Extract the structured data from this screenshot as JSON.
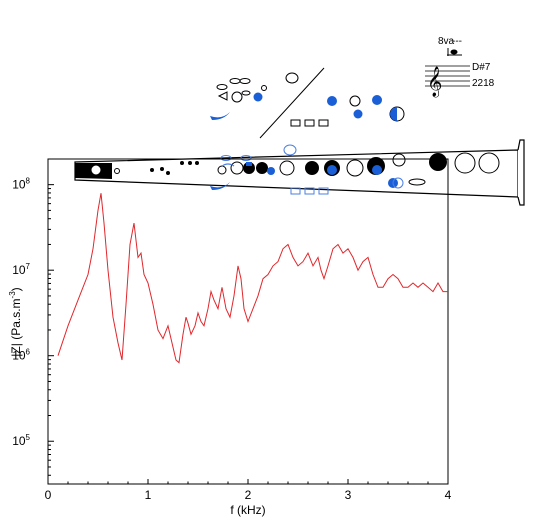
{
  "chart_data": {
    "type": "line",
    "title": "",
    "xlabel": "f (kHz)",
    "ylabel": "|Z| (Pa.s.m",
    "ylabel_sup": "-3",
    "ylabel_end": ")",
    "xlim": [
      0,
      4
    ],
    "ylim_log10": [
      4.5,
      8.3
    ],
    "yscale": "log",
    "grid": false,
    "x_ticks": [
      0,
      1,
      2,
      3,
      4
    ],
    "x_tick_labels": [
      "0",
      "1",
      "2",
      "3",
      "4"
    ],
    "y_ticks_exp": [
      5,
      6,
      7,
      8
    ],
    "y_tick_labels": [
      {
        "base": "10",
        "exp": "5"
      },
      {
        "base": "10",
        "exp": "6"
      },
      {
        "base": "10",
        "exp": "7"
      },
      {
        "base": "10",
        "exp": "8"
      }
    ],
    "series": [
      {
        "color": "#e0272c",
        "x": [
          0.1,
          0.2,
          0.3,
          0.4,
          0.45,
          0.5,
          0.53,
          0.56,
          0.6,
          0.65,
          0.7,
          0.74,
          0.78,
          0.82,
          0.86,
          0.9,
          0.93,
          0.96,
          1.0,
          1.05,
          1.1,
          1.15,
          1.2,
          1.25,
          1.28,
          1.31,
          1.35,
          1.38,
          1.4,
          1.43,
          1.47,
          1.5,
          1.53,
          1.56,
          1.6,
          1.63,
          1.66,
          1.7,
          1.74,
          1.78,
          1.82,
          1.86,
          1.9,
          1.93,
          1.96,
          2.0,
          2.05,
          2.1,
          2.15,
          2.2,
          2.25,
          2.3,
          2.35,
          2.4,
          2.45,
          2.5,
          2.55,
          2.6,
          2.65,
          2.7,
          2.73,
          2.76,
          2.8,
          2.85,
          2.9,
          2.95,
          3.0,
          3.05,
          3.1,
          3.15,
          3.2,
          3.25,
          3.3,
          3.35,
          3.4,
          3.45,
          3.5,
          3.55,
          3.6,
          3.65,
          3.7,
          3.75,
          3.8,
          3.85,
          3.9,
          3.95,
          4.0
        ],
        "y_log10": [
          6.0,
          6.35,
          6.65,
          6.95,
          7.25,
          7.7,
          7.9,
          7.55,
          7.0,
          6.45,
          6.15,
          5.95,
          6.6,
          7.3,
          7.55,
          7.15,
          7.2,
          6.95,
          6.85,
          6.6,
          6.3,
          6.2,
          6.35,
          6.1,
          5.95,
          5.92,
          6.25,
          6.45,
          6.38,
          6.25,
          6.35,
          6.5,
          6.4,
          6.35,
          6.55,
          6.75,
          6.65,
          6.55,
          6.8,
          6.55,
          6.45,
          6.7,
          7.05,
          6.9,
          6.55,
          6.4,
          6.55,
          6.7,
          6.9,
          6.95,
          7.05,
          7.1,
          7.25,
          7.3,
          7.15,
          7.05,
          7.1,
          7.2,
          7.05,
          7.15,
          7.0,
          6.9,
          7.05,
          7.25,
          7.3,
          7.2,
          7.25,
          7.15,
          7.0,
          7.1,
          7.15,
          6.95,
          6.8,
          6.8,
          6.9,
          6.95,
          6.9,
          6.8,
          6.8,
          6.85,
          6.8,
          6.85,
          6.8,
          6.75,
          6.85,
          6.75,
          6.75
        ]
      }
    ]
  },
  "notation": {
    "octave_mark": "8va",
    "dashes": "---",
    "note_name": "D#7",
    "note_value": "2218"
  },
  "colors": {
    "curve": "#e0272c",
    "key_blue": "#1a5fd6",
    "key_outline_blue": "#4a7fe0"
  }
}
